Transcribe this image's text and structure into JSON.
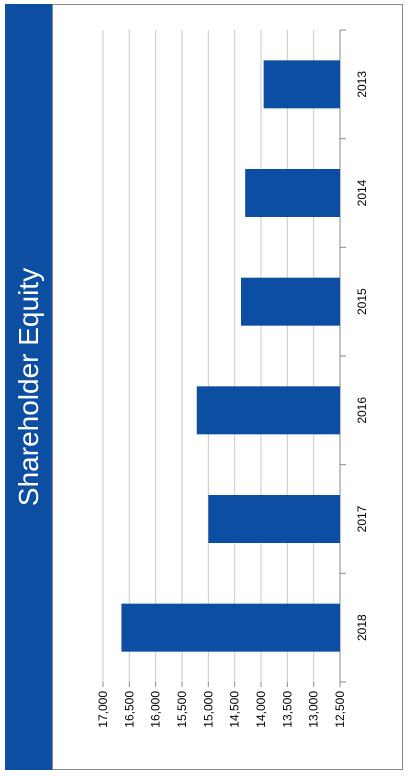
{
  "chart_data": {
    "type": "bar",
    "title": "Shareholder Equity",
    "categories": [
      "2013",
      "2014",
      "2015",
      "2016",
      "2017",
      "2018"
    ],
    "values": [
      13950,
      14300,
      14380,
      15220,
      15000,
      16650
    ],
    "color": "#0b4ea2",
    "ylim": [
      12500,
      17000
    ],
    "yticks": [
      {
        "value": 12500,
        "label": "12,500"
      },
      {
        "value": 13000,
        "label": "13,000"
      },
      {
        "value": 13500,
        "label": "13,500"
      },
      {
        "value": 14000,
        "label": "14,000"
      },
      {
        "value": 14500,
        "label": "14,500"
      },
      {
        "value": 15000,
        "label": "15,000"
      },
      {
        "value": 15500,
        "label": "15,500"
      },
      {
        "value": 16000,
        "label": "16,000"
      },
      {
        "value": 16500,
        "label": "16,500"
      },
      {
        "value": 17000,
        "label": "17,000"
      }
    ],
    "grid": true
  }
}
